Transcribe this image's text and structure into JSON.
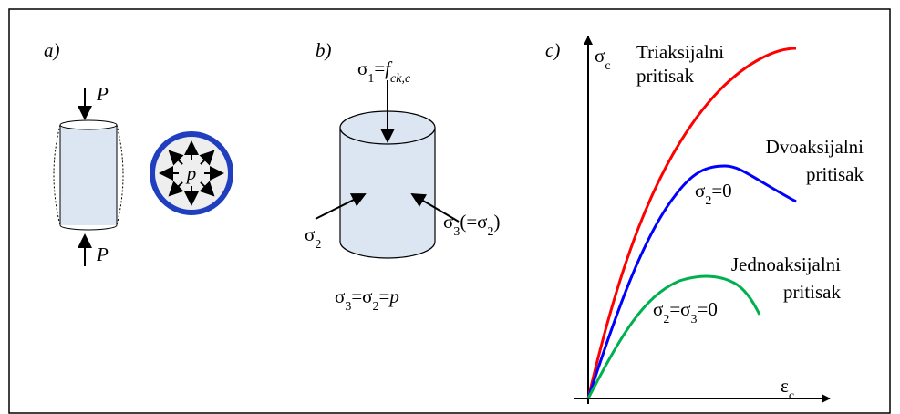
{
  "panel_a": {
    "label": "a)",
    "force_top": "P",
    "force_bottom": "P",
    "pressure": "p"
  },
  "panel_b": {
    "label": "b)",
    "sigma1": [
      "σ",
      "1",
      "=",
      "f",
      "ck,c"
    ],
    "sigma2": [
      "σ",
      "2"
    ],
    "sigma3": [
      "σ",
      "3",
      "(=σ",
      "2",
      ")"
    ],
    "caption": [
      "σ",
      "3",
      "=σ",
      "2",
      "=",
      "p"
    ]
  },
  "panel_c": {
    "label": "c)",
    "y_axis": [
      "σ",
      "c"
    ],
    "x_axis": [
      "ε",
      "c"
    ],
    "curves": [
      {
        "name": [
          "Triaksijalni",
          "pritisak"
        ],
        "color": "#ff0000"
      },
      {
        "name": [
          "Dvoaksijalni",
          "pritisak"
        ],
        "condition": [
          "σ",
          "2",
          "=0"
        ],
        "color": "#0000ff"
      },
      {
        "name": [
          "Jednoaksijalni",
          "pritisak"
        ],
        "condition": [
          "σ",
          "2",
          "=σ",
          "3",
          "=0"
        ],
        "color": "#00b050"
      }
    ]
  }
}
